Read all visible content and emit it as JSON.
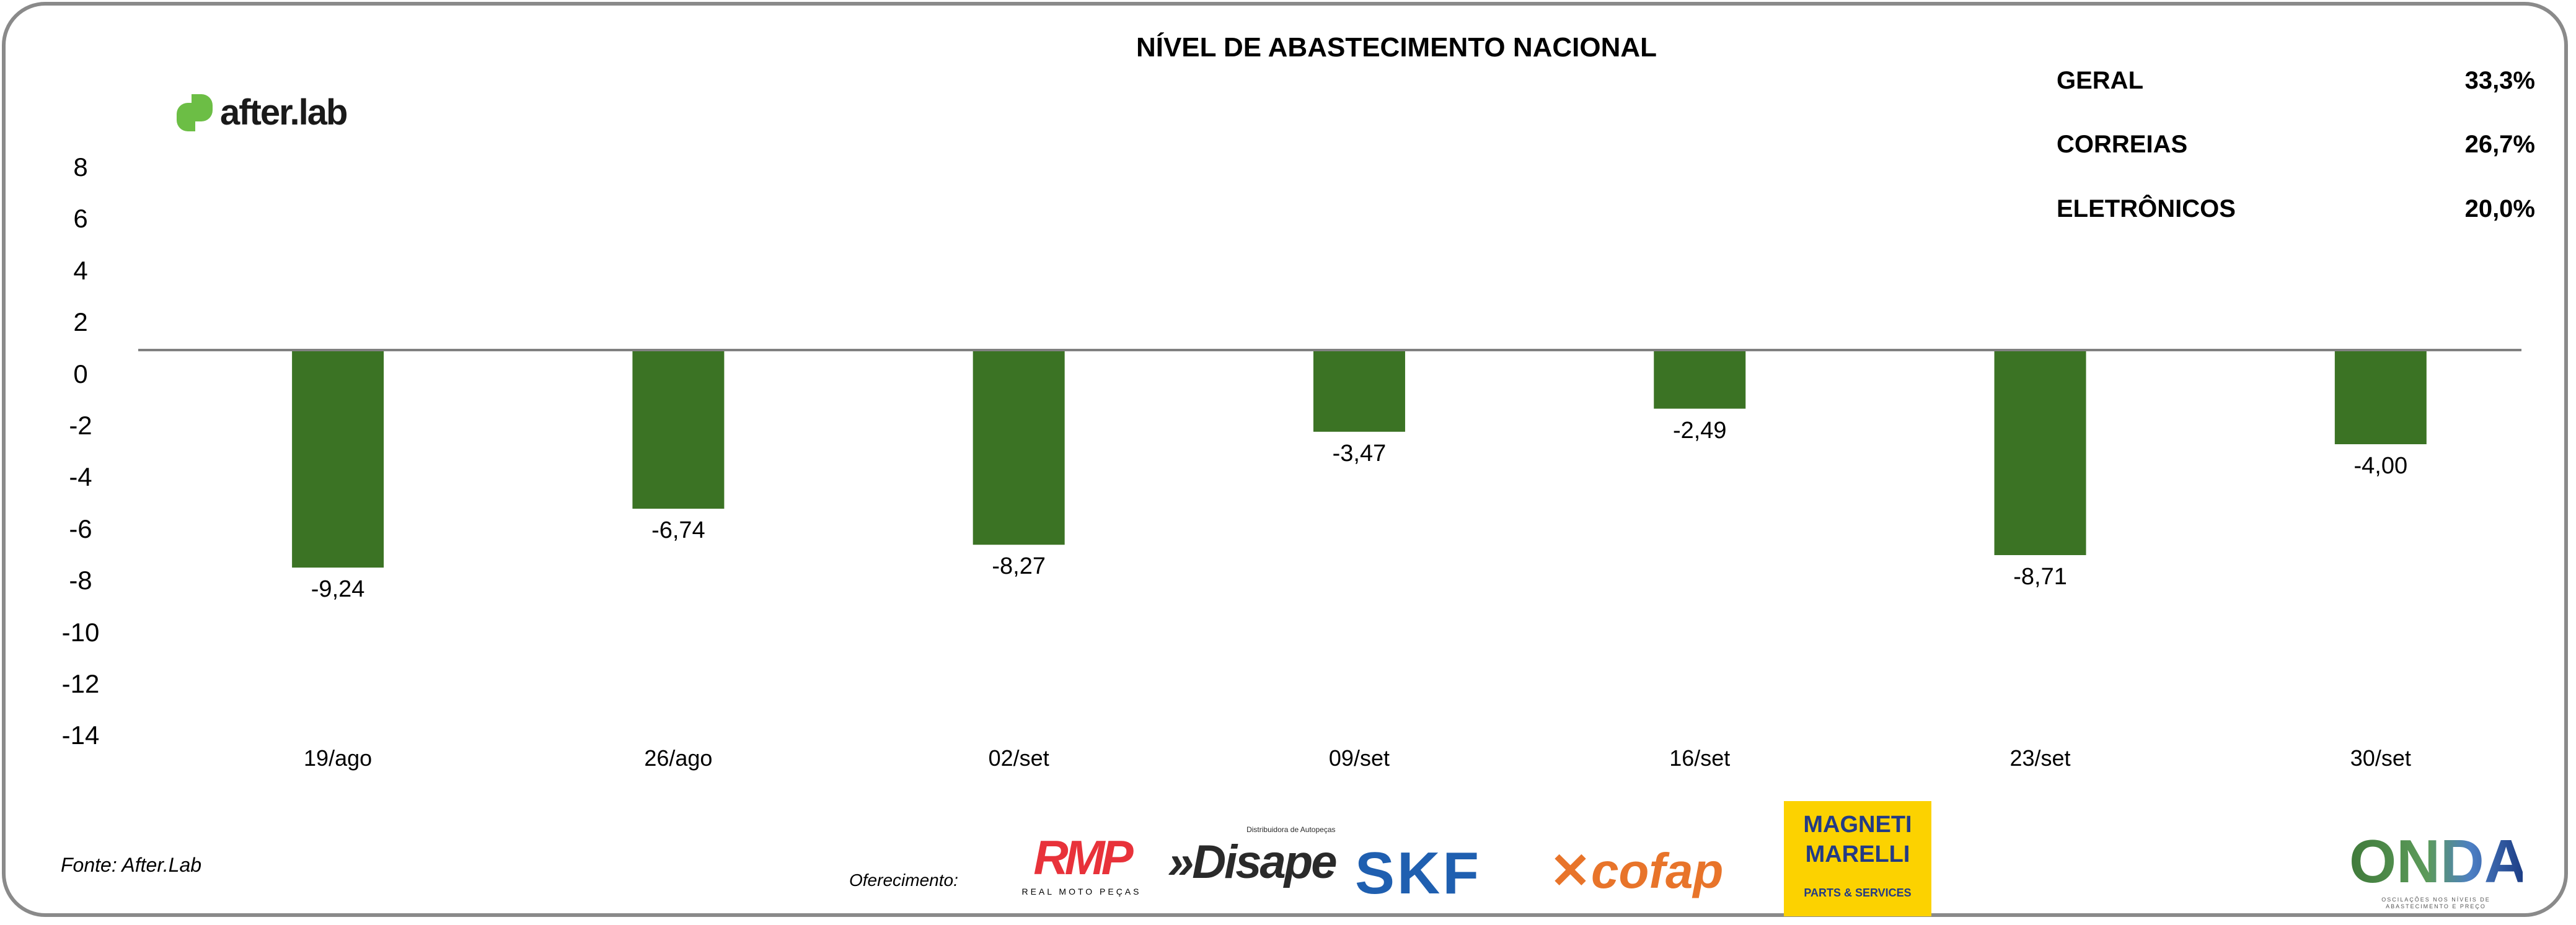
{
  "brand": {
    "logo_text": "after.lab",
    "logo_color": "#6cbe45"
  },
  "chart_data": {
    "type": "bar",
    "title": "NÍVEL DE ABASTECIMENTO NACIONAL",
    "categories": [
      "19/ago",
      "26/ago",
      "02/set",
      "09/set",
      "16/set",
      "23/set",
      "30/set"
    ],
    "values": [
      -9.24,
      -6.74,
      -8.27,
      -3.47,
      -2.49,
      -8.71,
      -4.0
    ],
    "data_labels": [
      "-9,24",
      "-6,74",
      "-8,27",
      "-3,47",
      "-2,49",
      "-8,71",
      "-4,00"
    ],
    "ylim": [
      -14,
      8
    ],
    "yticks": [
      "8",
      "6",
      "4",
      "2",
      "0",
      "-2",
      "-4",
      "-6",
      "-8",
      "-10",
      "-12",
      "-14"
    ],
    "bar_color": "#3b7324",
    "grid": false,
    "xlabel": "",
    "ylabel": ""
  },
  "legend_table": [
    {
      "label": "GERAL",
      "value": "33,3%"
    },
    {
      "label": "CORREIAS",
      "value": "26,7%"
    },
    {
      "label": "ELETRÔNICOS",
      "value": "20,0%"
    }
  ],
  "footer": {
    "source": "Fonte: After.Lab",
    "sponsor_label": "Oferecimento:",
    "sponsors": {
      "rmp": "RMP",
      "rmp_sub": "REAL MOTO PEÇAS",
      "disape": "»Disape",
      "disape_sub": "Distribuidora de Autopeças",
      "skf": "SKF",
      "cofap": "cofap",
      "magneti": "MAGNETI MARELLI",
      "magneti_sub": "PARTS & SERVICES"
    },
    "onda": "ONDA",
    "onda_sub": "OSCILAÇÕES NOS NÍVEIS DE ABASTECIMENTO E PREÇO"
  }
}
